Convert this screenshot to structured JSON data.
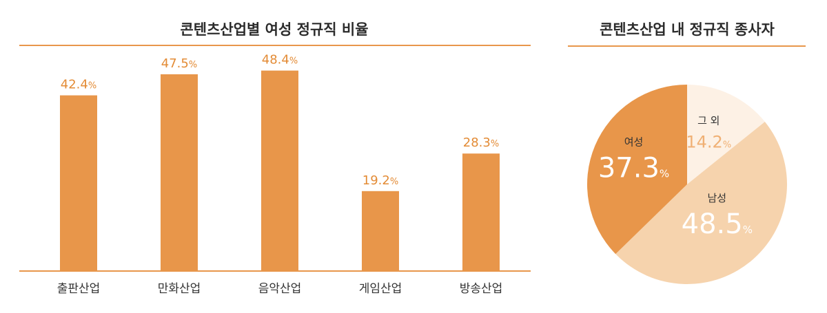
{
  "chart_data": [
    {
      "type": "bar",
      "title": "콘텐츠산업별 여성 정규직 비율",
      "categories": [
        "출판산업",
        "만화산업",
        "음악산업",
        "게임산업",
        "방송산업"
      ],
      "values": [
        42.4,
        47.5,
        48.4,
        19.2,
        28.3
      ],
      "value_labels": [
        "42.4",
        "47.5",
        "48.4",
        "19.2",
        "28.3"
      ],
      "unit": "%",
      "ylim": [
        0,
        55
      ],
      "grid": false,
      "bar_color": "#e8964a"
    },
    {
      "type": "pie",
      "title": "콘텐츠산업 내 정규직 종사자",
      "slices": [
        {
          "label": "그 외",
          "value": 14.2,
          "value_label": "14.2",
          "color": "#fdf1e5"
        },
        {
          "label": "남성",
          "value": 48.5,
          "value_label": "48.5",
          "color": "#f6d3ad"
        },
        {
          "label": "여성",
          "value": 37.3,
          "value_label": "37.3",
          "color": "#e8964a"
        }
      ],
      "unit": "%"
    }
  ],
  "colors": {
    "accent": "#e8964a",
    "rule": "#e8964a",
    "value_text": "#e38b35"
  }
}
